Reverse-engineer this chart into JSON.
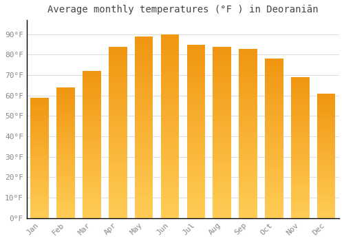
{
  "title": "Average monthly temperatures (°F ) in Deoraniān",
  "months": [
    "Jan",
    "Feb",
    "Mar",
    "Apr",
    "May",
    "Jun",
    "Jul",
    "Aug",
    "Sep",
    "Oct",
    "Nov",
    "Dec"
  ],
  "values": [
    59,
    64,
    72,
    84,
    89,
    90,
    85,
    84,
    83,
    78,
    69,
    61
  ],
  "bar_color": "#F5A623",
  "bar_edge_color": "#FFFFFF",
  "background_color": "#FFFFFF",
  "grid_color": "#DDDDDD",
  "ylim": [
    0,
    97
  ],
  "yticks": [
    0,
    10,
    20,
    30,
    40,
    50,
    60,
    70,
    80,
    90
  ],
  "ytick_labels": [
    "0°F",
    "10°F",
    "20°F",
    "30°F",
    "40°F",
    "50°F",
    "60°F",
    "70°F",
    "80°F",
    "90°F"
  ],
  "title_fontsize": 10,
  "tick_fontsize": 8,
  "title_color": "#444444",
  "tick_color": "#888888",
  "spine_color": "#000000",
  "bar_width": 0.7,
  "font_family": "monospace"
}
